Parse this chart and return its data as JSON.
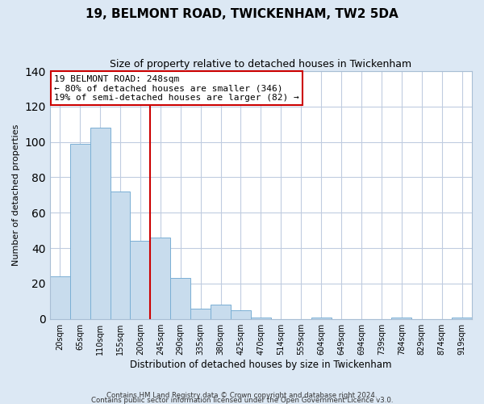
{
  "title": "19, BELMONT ROAD, TWICKENHAM, TW2 5DA",
  "subtitle": "Size of property relative to detached houses in Twickenham",
  "xlabel": "Distribution of detached houses by size in Twickenham",
  "ylabel": "Number of detached properties",
  "bar_labels": [
    "20sqm",
    "65sqm",
    "110sqm",
    "155sqm",
    "200sqm",
    "245sqm",
    "290sqm",
    "335sqm",
    "380sqm",
    "425sqm",
    "470sqm",
    "514sqm",
    "559sqm",
    "604sqm",
    "649sqm",
    "694sqm",
    "739sqm",
    "784sqm",
    "829sqm",
    "874sqm",
    "919sqm"
  ],
  "bar_heights": [
    24,
    99,
    108,
    72,
    44,
    46,
    23,
    6,
    8,
    5,
    1,
    0,
    0,
    1,
    0,
    0,
    0,
    1,
    0,
    0,
    1
  ],
  "bar_color": "#c8dced",
  "bar_edge_color": "#7aafd4",
  "vline_x": 5,
  "vline_color": "#cc0000",
  "annotation_lines": [
    "19 BELMONT ROAD: 248sqm",
    "← 80% of detached houses are smaller (346)",
    "19% of semi-detached houses are larger (82) →"
  ],
  "annotation_box_facecolor": "#ffffff",
  "annotation_box_edgecolor": "#cc0000",
  "ylim": [
    0,
    140
  ],
  "yticks": [
    0,
    20,
    40,
    60,
    80,
    100,
    120,
    140
  ],
  "grid_color": "#c0cce0",
  "plot_bg_color": "#ffffff",
  "fig_bg_color": "#dce8f4",
  "footer_line1": "Contains HM Land Registry data © Crown copyright and database right 2024.",
  "footer_line2": "Contains public sector information licensed under the Open Government Licence v3.0."
}
